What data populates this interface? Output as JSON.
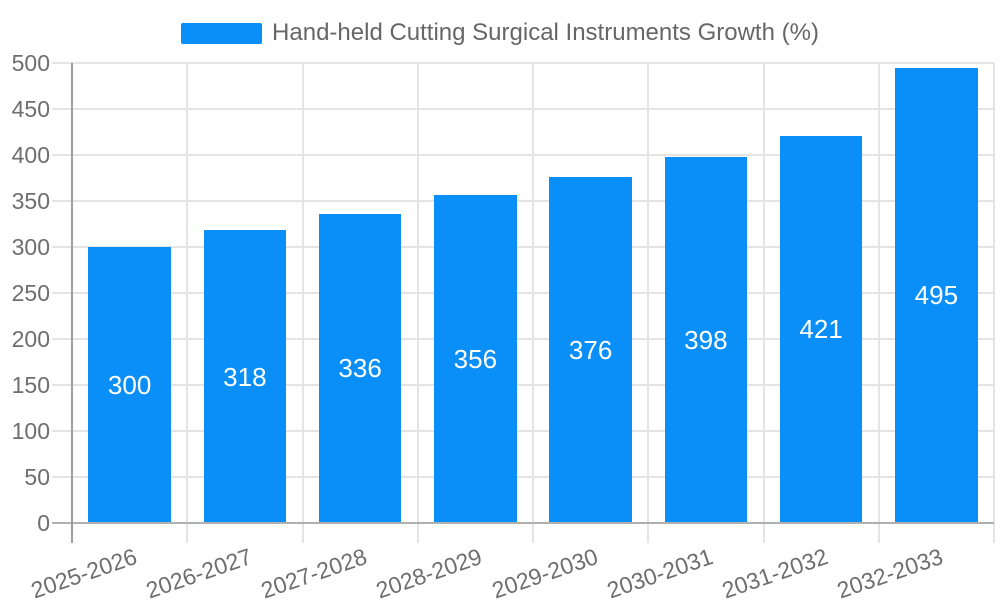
{
  "legend": {
    "label": "Hand-held Cutting Surgical Instruments Growth (%)",
    "marker_color": "#0a8ff9"
  },
  "chart_data": {
    "type": "bar",
    "title": "Hand-held Cutting Surgical Instruments Growth (%)",
    "categories": [
      "2025-2026",
      "2026-2027",
      "2027-2028",
      "2028-2029",
      "2029-2030",
      "2030-2031",
      "2031-2032",
      "2032-2033"
    ],
    "series": [
      {
        "name": "Hand-held Cutting Surgical Instruments Growth (%)",
        "values": [
          300,
          318,
          336,
          356,
          376,
          398,
          421,
          495
        ]
      }
    ],
    "value_labels": [
      "300",
      "318",
      "336",
      "356",
      "376",
      "398",
      "421",
      "495"
    ],
    "xlabel": "",
    "ylabel": "",
    "ylim": [
      0,
      500
    ],
    "yticks": [
      0,
      50,
      100,
      150,
      200,
      250,
      300,
      350,
      400,
      450,
      500
    ],
    "grid": true,
    "legend_position": "top",
    "bar_color": "#0a8ff9",
    "value_label_color": "#ffffff"
  },
  "colors": {
    "background": "#ffffff",
    "grid": "#e4e4e4",
    "axis_zero_h": "#b0b0b0",
    "axis_zero_v": "#9e9e9e",
    "tick_label": "#6e6e6e",
    "legend_text": "#666666"
  }
}
